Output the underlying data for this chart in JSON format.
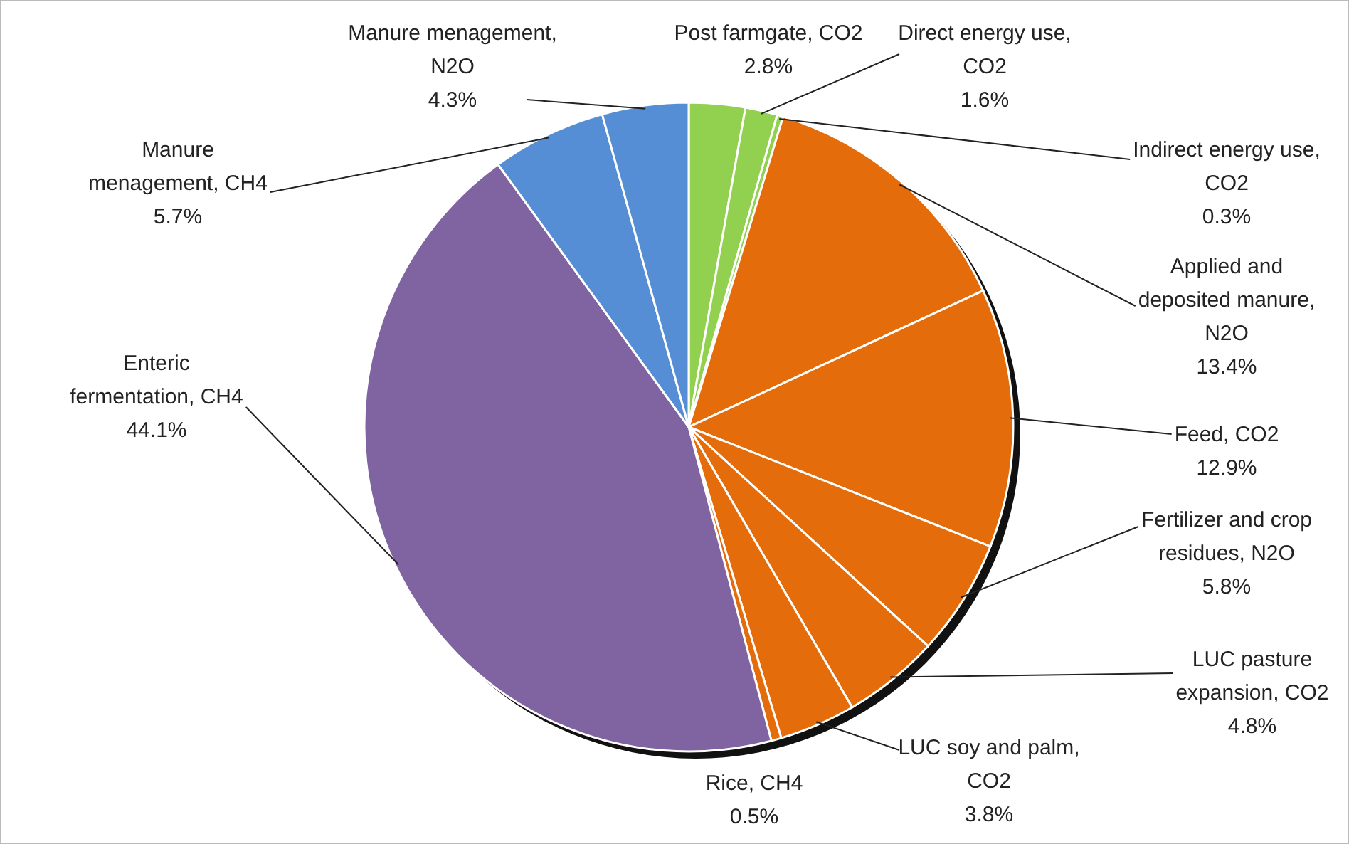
{
  "chart_data": {
    "type": "pie",
    "categories": [
      "Post farmgate, CO2",
      "Direct energy use, CO2",
      "Indirect energy use, CO2",
      "Applied and deposited manure, N2O",
      "Feed, CO2",
      "Fertilizer and crop residues, N2O",
      "LUC pasture expansion, CO2",
      "LUC soy and palm, CO2",
      "Rice, CH4",
      "Enteric fermentation, CH4",
      "Manure menagement, CH4",
      "Manure menagement, N2O"
    ],
    "values": [
      2.8,
      1.6,
      0.3,
      13.4,
      12.9,
      5.8,
      4.8,
      3.8,
      0.5,
      44.1,
      5.7,
      4.3
    ],
    "colors": [
      "#92d050",
      "#92d050",
      "#92d050",
      "#e46c0a",
      "#e46c0a",
      "#e46c0a",
      "#e46c0a",
      "#e46c0a",
      "#e46c0a",
      "#8064a2",
      "#558ed5",
      "#558ed5"
    ],
    "value_labels": [
      "2.8%",
      "1.6%",
      "0.3%",
      "13.4%",
      "12.9%",
      "5.8%",
      "4.8%",
      "3.8%",
      "0.5%",
      "44.1%",
      "5.7%",
      "4.3%"
    ]
  }
}
